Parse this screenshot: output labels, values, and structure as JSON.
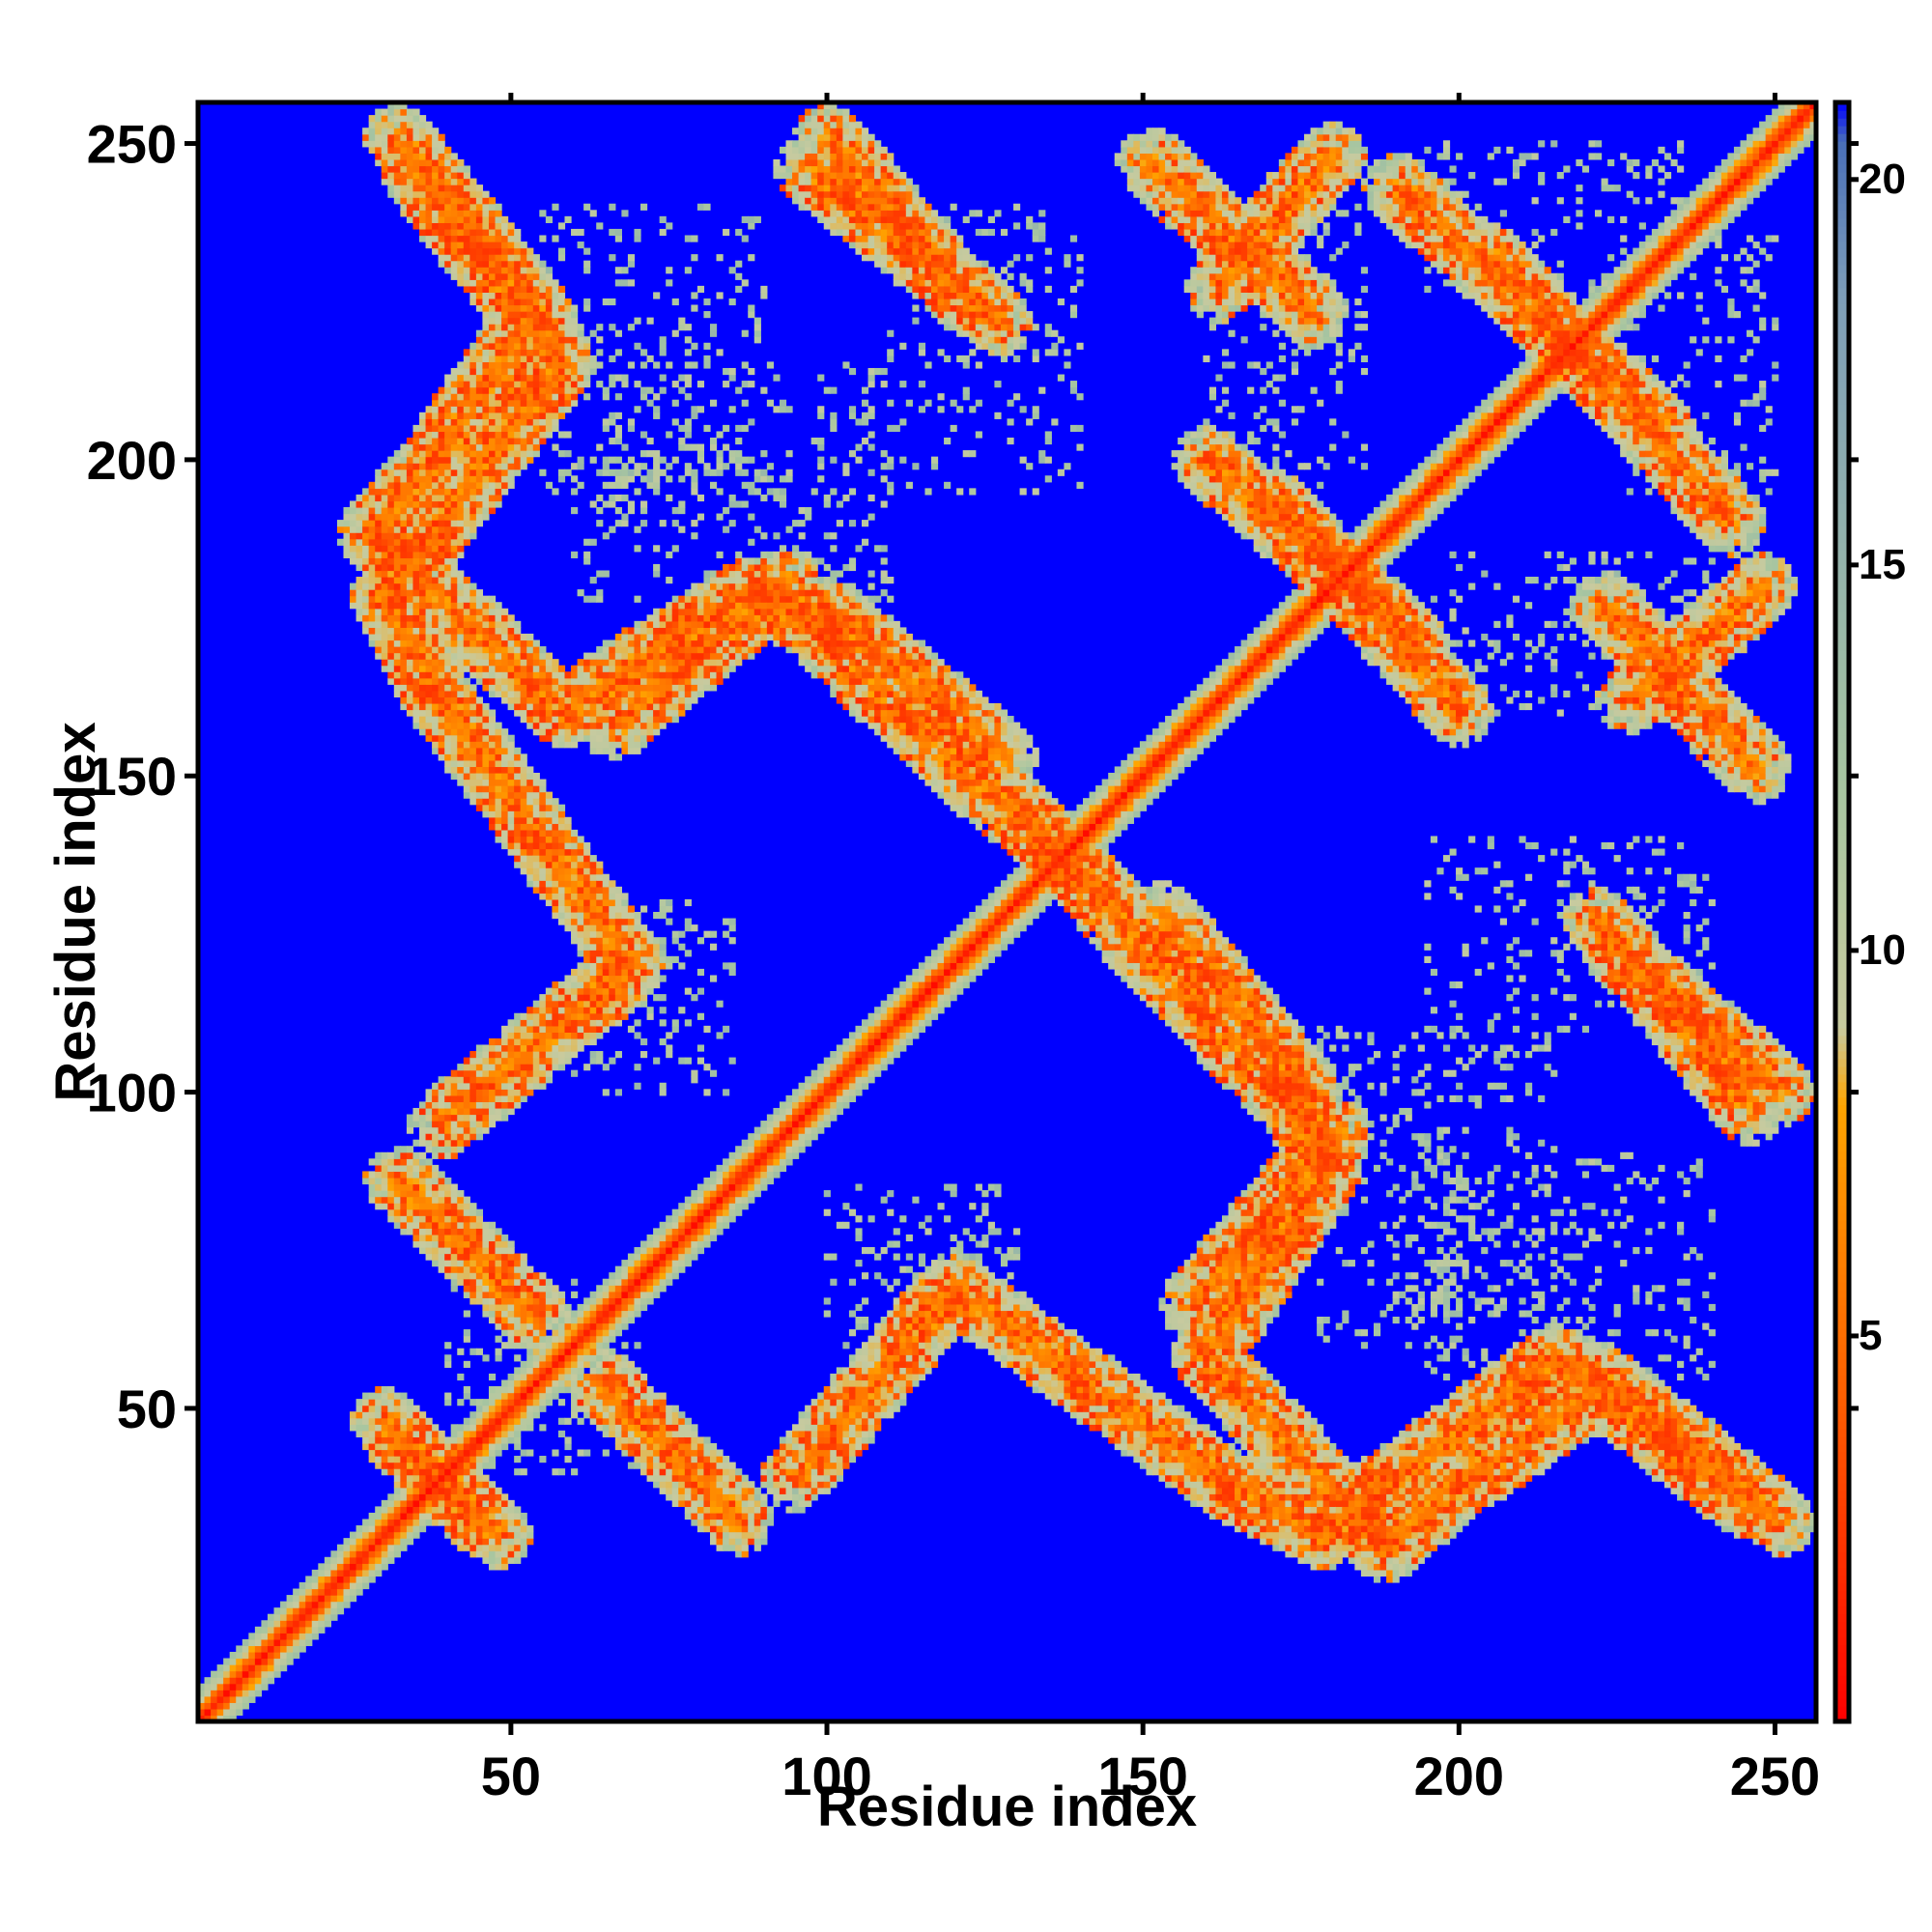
{
  "chart_data": {
    "type": "heatmap",
    "title": "",
    "xlabel": "Residue index",
    "ylabel": "Residue index",
    "xlim": [
      1,
      256
    ],
    "ylim": [
      1,
      256
    ],
    "x_ticks": [
      50,
      100,
      150,
      200,
      250
    ],
    "y_ticks": [
      50,
      100,
      150,
      200,
      250
    ],
    "colorbar": {
      "range": [
        0,
        21
      ],
      "ticks": [
        5,
        10,
        15,
        20
      ],
      "palette": [
        {
          "value": 0,
          "color": "#ff0000"
        },
        {
          "value": 4,
          "color": "#ff5a00"
        },
        {
          "value": 8,
          "color": "#ffa500"
        },
        {
          "value": 9,
          "color": "#c8ca9f"
        },
        {
          "value": 12,
          "color": "#a8c6a0"
        },
        {
          "value": 18.5,
          "color": "#7e9eb8"
        },
        {
          "value": 20.5,
          "color": "#4a6fb8"
        },
        {
          "value": 21,
          "color": "#0000ff"
        }
      ]
    },
    "background_value": 21,
    "diagonal": {
      "from": [
        1,
        1
      ],
      "to": [
        256,
        256
      ],
      "core_value": 1,
      "halo_values": [
        3.5,
        6,
        9,
        11,
        13
      ]
    },
    "contact_bands": [
      {
        "from": [
          45,
          32
        ],
        "to": [
          30,
          48
        ],
        "mean": 11
      },
      {
        "from": [
          64,
          54
        ],
        "to": [
          86,
          32
        ],
        "mean": 11
      },
      {
        "from": [
          120,
          69
        ],
        "to": [
          95,
          39
        ],
        "mean": 11
      },
      {
        "from": [
          120,
          69
        ],
        "to": [
          163,
          38
        ],
        "mean": 11
      },
      {
        "from": [
          163,
          38
        ],
        "to": [
          178,
          30
        ],
        "mean": 11
      },
      {
        "from": [
          178,
          30
        ],
        "to": [
          215,
          58
        ],
        "mean": 11
      },
      {
        "from": [
          215,
          58
        ],
        "to": [
          245,
          35
        ],
        "mean": 11
      },
      {
        "from": [
          148,
          124
        ],
        "to": [
          178,
          93
        ],
        "mean": 11
      },
      {
        "from": [
          181,
          94
        ],
        "to": [
          158,
          66
        ],
        "mean": 11
      },
      {
        "from": [
          222,
          127
        ],
        "to": [
          246,
          97
        ],
        "mean": 11
      },
      {
        "from": [
          32,
          251
        ],
        "to": [
          55,
          222
        ],
        "mean": 11
      },
      {
        "from": [
          53,
          222
        ],
        "to": [
          38,
          200
        ],
        "mean": 11
      },
      {
        "from": [
          38,
          200
        ],
        "to": [
          28,
          188
        ],
        "mean": 11
      },
      {
        "from": [
          28,
          188
        ],
        "to": [
          58,
          160
        ],
        "mean": 11
      },
      {
        "from": [
          58,
          160
        ],
        "to": [
          87,
          179
        ],
        "mean": 11
      },
      {
        "from": [
          87,
          179
        ],
        "to": [
          105,
          171
        ],
        "mean": 11
      },
      {
        "from": [
          100,
          176
        ],
        "to": [
          128,
          153
        ],
        "mean": 11
      },
      {
        "from": [
          100,
          251
        ],
        "to": [
          122,
          225
        ],
        "mean": 11
      },
      {
        "from": [
          223,
          177
        ],
        "to": [
          247,
          151
        ],
        "mean": 11
      },
      {
        "from": [
          171,
          193
        ],
        "to": [
          200,
          160
        ],
        "mean": 11
      },
      {
        "from": [
          180,
          248
        ],
        "to": [
          162,
          227
        ],
        "mean": 11
      },
      {
        "from": [
          190,
          243
        ],
        "to": [
          232,
          205
        ],
        "mean": 11
      },
      {
        "from": [
          130,
          145
        ],
        "to": [
          148,
          125
        ],
        "mean": 11
      }
    ],
    "sparse_regions": [
      {
        "x": [
          55,
          90
        ],
        "y": [
          195,
          240
        ],
        "mean": 12
      },
      {
        "x": [
          110,
          140
        ],
        "y": [
          195,
          240
        ],
        "mean": 12
      },
      {
        "x": [
          45,
          70
        ],
        "y": [
          40,
          60
        ],
        "mean": 12
      },
      {
        "x": [
          100,
          130
        ],
        "y": [
          60,
          85
        ],
        "mean": 12
      },
      {
        "x": [
          178,
          200
        ],
        "y": [
          60,
          110
        ],
        "mean": 12
      },
      {
        "x": [
          190,
          215
        ],
        "y": [
          65,
          110
        ],
        "mean": 12
      },
      {
        "x": [
          60,
          80
        ],
        "y": [
          110,
          130
        ],
        "mean": 12
      },
      {
        "x": [
          160,
          185
        ],
        "y": [
          195,
          240
        ],
        "mean": 12
      },
      {
        "x": [
          225,
          250
        ],
        "y": [
          195,
          235
        ],
        "mean": 12
      }
    ]
  }
}
